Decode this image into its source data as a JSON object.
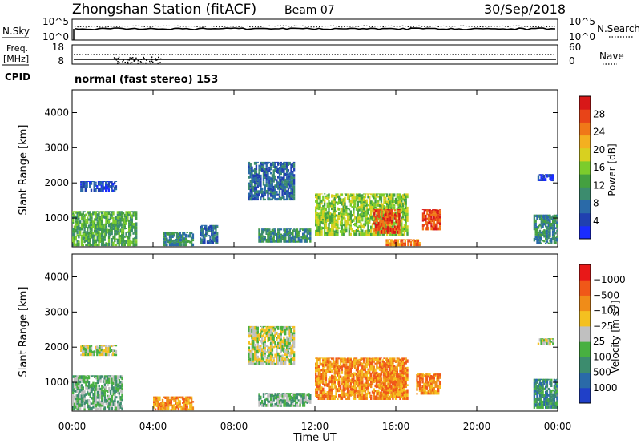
{
  "header": {
    "station": "Zhongshan Station (fitACF)",
    "beam": "Beam 07",
    "date": "30/Sep/2018"
  },
  "nsky_panel": {
    "left_label": "N.Sky",
    "right_label": "N.Search",
    "left_ticks": [
      "10^5",
      "10^0"
    ],
    "right_ticks": [
      "10^5",
      "10^0"
    ]
  },
  "freq_panel": {
    "left_label_1": "Freq.",
    "left_label_2": "[MHz]",
    "right_label": "Nave",
    "left_ticks": [
      "18",
      "8"
    ],
    "right_ticks": [
      "60",
      "0"
    ]
  },
  "cpid": {
    "label": "CPID",
    "text": "normal (fast stereo) 153"
  },
  "chart_data": [
    {
      "type": "heatmap",
      "name": "power",
      "ylabel": "Slant Range [km]",
      "ylim": [
        180,
        4650
      ],
      "yticks": [
        "1000",
        "2000",
        "3000",
        "4000"
      ],
      "xlim": [
        0,
        24
      ],
      "colorbar": {
        "label": "Power [dB]",
        "ticks": [
          "4",
          "8",
          "12",
          "16",
          "20",
          "24",
          "28"
        ],
        "colors": [
          "#1a2cff",
          "#2040b0",
          "#2a6aa8",
          "#3c8c6e",
          "#44a040",
          "#7ccc2c",
          "#d8d020",
          "#f4b020",
          "#f07818",
          "#e84418",
          "#d81818"
        ]
      },
      "regions": [
        {
          "t0": 0.0,
          "t1": 3.2,
          "r0": 200,
          "r1": 1200,
          "level": 4
        },
        {
          "t0": 0.4,
          "t1": 2.2,
          "r0": 1750,
          "r1": 2050,
          "level": 1
        },
        {
          "t0": 4.5,
          "t1": 6.0,
          "r0": 200,
          "r1": 600,
          "level": 3
        },
        {
          "t0": 6.3,
          "t1": 7.2,
          "r0": 250,
          "r1": 800,
          "level": 2
        },
        {
          "t0": 8.7,
          "t1": 11.0,
          "r0": 1500,
          "r1": 2600,
          "level": 2
        },
        {
          "t0": 9.2,
          "t1": 11.8,
          "r0": 300,
          "r1": 700,
          "level": 3
        },
        {
          "t0": 12.0,
          "t1": 16.6,
          "r0": 500,
          "r1": 1700,
          "level": 5
        },
        {
          "t0": 14.9,
          "t1": 16.2,
          "r0": 550,
          "r1": 1250,
          "level": 9
        },
        {
          "t0": 15.5,
          "t1": 17.2,
          "r0": 200,
          "r1": 400,
          "level": 8
        },
        {
          "t0": 17.3,
          "t1": 18.2,
          "r0": 650,
          "r1": 1250,
          "level": 9
        },
        {
          "t0": 22.8,
          "t1": 24.0,
          "r0": 250,
          "r1": 1100,
          "level": 3
        },
        {
          "t0": 23.0,
          "t1": 23.8,
          "r0": 2050,
          "r1": 2250,
          "level": 1
        }
      ]
    },
    {
      "type": "heatmap",
      "name": "velocity",
      "ylabel": "Slant Range [km]",
      "ylim": [
        180,
        4650
      ],
      "yticks": [
        "1000",
        "2000",
        "3000",
        "4000"
      ],
      "xlim": [
        0,
        24
      ],
      "xticks": [
        "00:00",
        "04:00",
        "08:00",
        "12:00",
        "16:00",
        "20:00",
        "00:00"
      ],
      "xlabel": "Time UT",
      "colorbar": {
        "label": "Velocity [m s",
        "label_sup": "-1",
        "label_end": "]",
        "ticks": [
          "1000",
          "500",
          "100",
          "25",
          "−25",
          "−100",
          "−500",
          "−1000"
        ],
        "colors": [
          "#2040c8",
          "#2a6aa8",
          "#3c8c6e",
          "#48b040",
          "#c0c0c0",
          "#f4c020",
          "#f08c18",
          "#f05818",
          "#e81818"
        ]
      },
      "regions": [
        {
          "t0": 0.0,
          "t1": 2.5,
          "r0": 200,
          "r1": 1200,
          "level": 3
        },
        {
          "t0": 0.4,
          "t1": 2.2,
          "r0": 1750,
          "r1": 2050,
          "level": 4
        },
        {
          "t0": 4.0,
          "t1": 6.0,
          "r0": 200,
          "r1": 600,
          "level": 6
        },
        {
          "t0": 8.7,
          "t1": 11.0,
          "r0": 1500,
          "r1": 2600,
          "level": 4
        },
        {
          "t0": 9.2,
          "t1": 11.8,
          "r0": 300,
          "r1": 700,
          "level": 3
        },
        {
          "t0": 12.0,
          "t1": 16.6,
          "r0": 500,
          "r1": 1700,
          "level": 6
        },
        {
          "t0": 15.0,
          "t1": 16.5,
          "r0": 550,
          "r1": 1250,
          "level": 6
        },
        {
          "t0": 17.0,
          "t1": 18.2,
          "r0": 650,
          "r1": 1250,
          "level": 6
        },
        {
          "t0": 22.8,
          "t1": 24.0,
          "r0": 250,
          "r1": 1100,
          "level": 2
        },
        {
          "t0": 23.0,
          "t1": 23.8,
          "r0": 2050,
          "r1": 2250,
          "level": 4
        }
      ]
    }
  ]
}
